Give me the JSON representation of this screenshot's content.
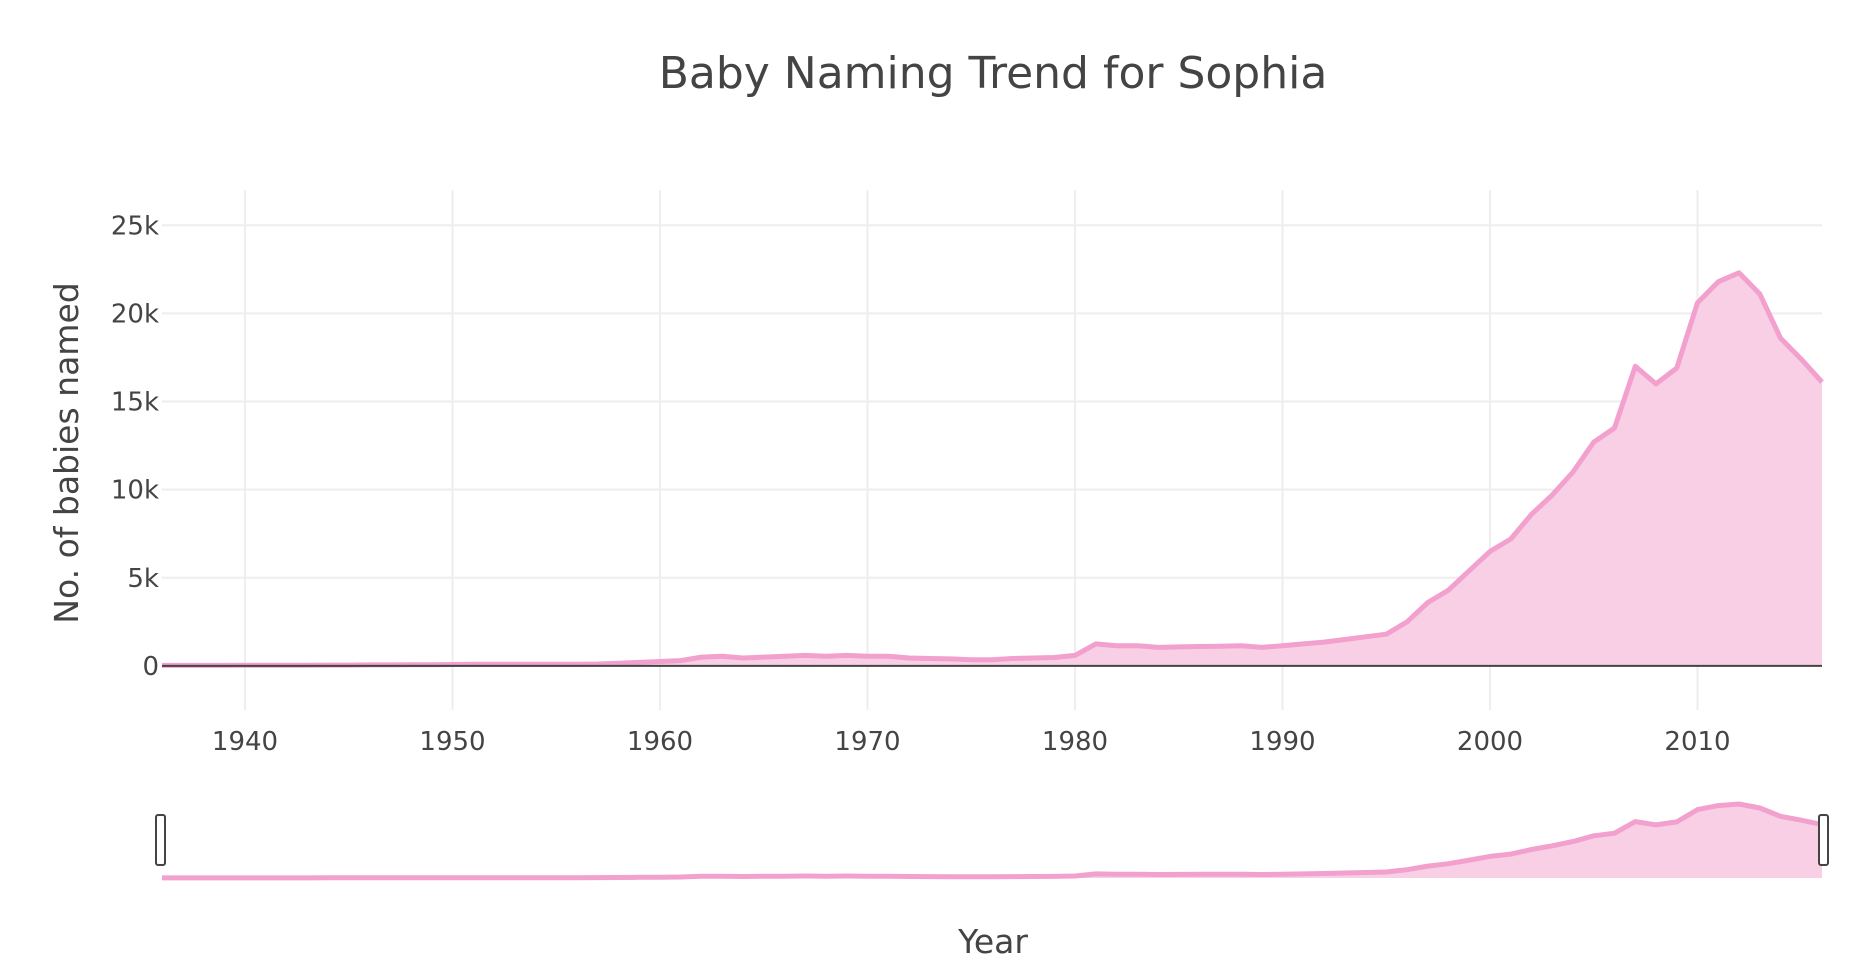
{
  "chart_data": {
    "type": "area",
    "title": "Baby Naming Trend for Sophia",
    "xlabel": "Year",
    "ylabel": "No. of babies named",
    "xlim": [
      1936,
      2016
    ],
    "ylim": [
      -2500,
      27000
    ],
    "x_ticks": [
      1940,
      1950,
      1960,
      1970,
      1980,
      1990,
      2000,
      2010
    ],
    "y_ticks": [
      0,
      5000,
      10000,
      15000,
      20000,
      25000
    ],
    "y_tick_labels": [
      "0",
      "5k",
      "10k",
      "15k",
      "20k",
      "25k"
    ],
    "grid": true,
    "legend": "none",
    "rangeslider": true,
    "colors": {
      "line": "#f2a0cd",
      "fill": "#f8cfe5",
      "grid": "#eeeeee",
      "text": "#444444"
    },
    "series": [
      {
        "x": [
          1936,
          1937,
          1938,
          1939,
          1940,
          1941,
          1942,
          1943,
          1944,
          1945,
          1946,
          1947,
          1948,
          1949,
          1950,
          1951,
          1952,
          1953,
          1954,
          1955,
          1956,
          1957,
          1958,
          1959,
          1960,
          1961,
          1962,
          1963,
          1964,
          1965,
          1966,
          1967,
          1968,
          1969,
          1970,
          1971,
          1972,
          1973,
          1974,
          1975,
          1976,
          1977,
          1978,
          1979,
          1980,
          1981,
          1982,
          1983,
          1984,
          1985,
          1986,
          1987,
          1988,
          1989,
          1990,
          1991,
          1992,
          1993,
          1994,
          1995,
          1996,
          1997,
          1998,
          1999,
          2000,
          2001,
          2002,
          2003,
          2004,
          2005,
          2006,
          2007,
          2008,
          2009,
          2010,
          2011,
          2012,
          2013,
          2014,
          2015,
          2016
        ],
        "values": [
          30,
          30,
          30,
          30,
          40,
          40,
          40,
          40,
          50,
          50,
          60,
          60,
          70,
          70,
          80,
          90,
          90,
          90,
          100,
          100,
          100,
          110,
          150,
          200,
          250,
          300,
          500,
          550,
          450,
          500,
          550,
          600,
          550,
          600,
          550,
          550,
          450,
          420,
          400,
          350,
          350,
          420,
          450,
          480,
          600,
          1250,
          1150,
          1150,
          1050,
          1080,
          1100,
          1120,
          1150,
          1050,
          1150,
          1250,
          1350,
          1500,
          1650,
          1800,
          2500,
          3600,
          4300,
          5400,
          6500,
          7200,
          8600,
          9700,
          11000,
          12700,
          13500,
          17000,
          16000,
          16900,
          20600,
          21800,
          22300,
          21100,
          18600,
          17400,
          16100
        ]
      }
    ]
  }
}
